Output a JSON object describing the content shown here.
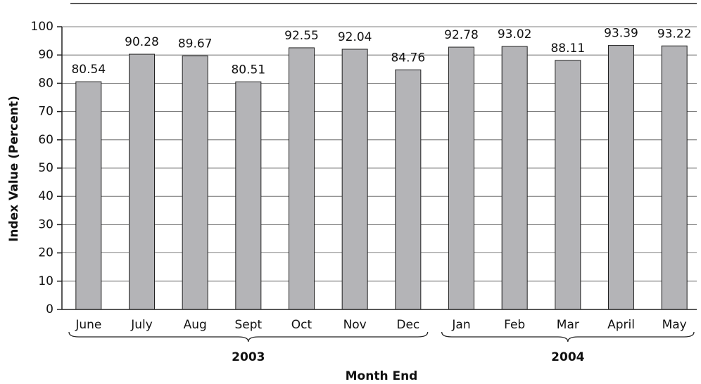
{
  "chart_data": {
    "type": "bar",
    "categories": [
      "June",
      "July",
      "Aug",
      "Sept",
      "Oct",
      "Nov",
      "Dec",
      "Jan",
      "Feb",
      "Mar",
      "April",
      "May"
    ],
    "values": [
      80.54,
      90.28,
      89.67,
      80.51,
      92.55,
      92.04,
      84.76,
      92.78,
      93.02,
      88.11,
      93.39,
      93.22
    ],
    "color": "#b4b4b7",
    "x_groups": [
      {
        "label": "2003",
        "count": 7
      },
      {
        "label": "2004",
        "count": 5
      }
    ],
    "xlabel": "Month End",
    "ylabel": "Index Value (Percent)",
    "ylim": [
      0,
      100
    ],
    "yticks": [
      0,
      10,
      20,
      30,
      40,
      50,
      60,
      70,
      80,
      90,
      100
    ],
    "grid": true
  }
}
